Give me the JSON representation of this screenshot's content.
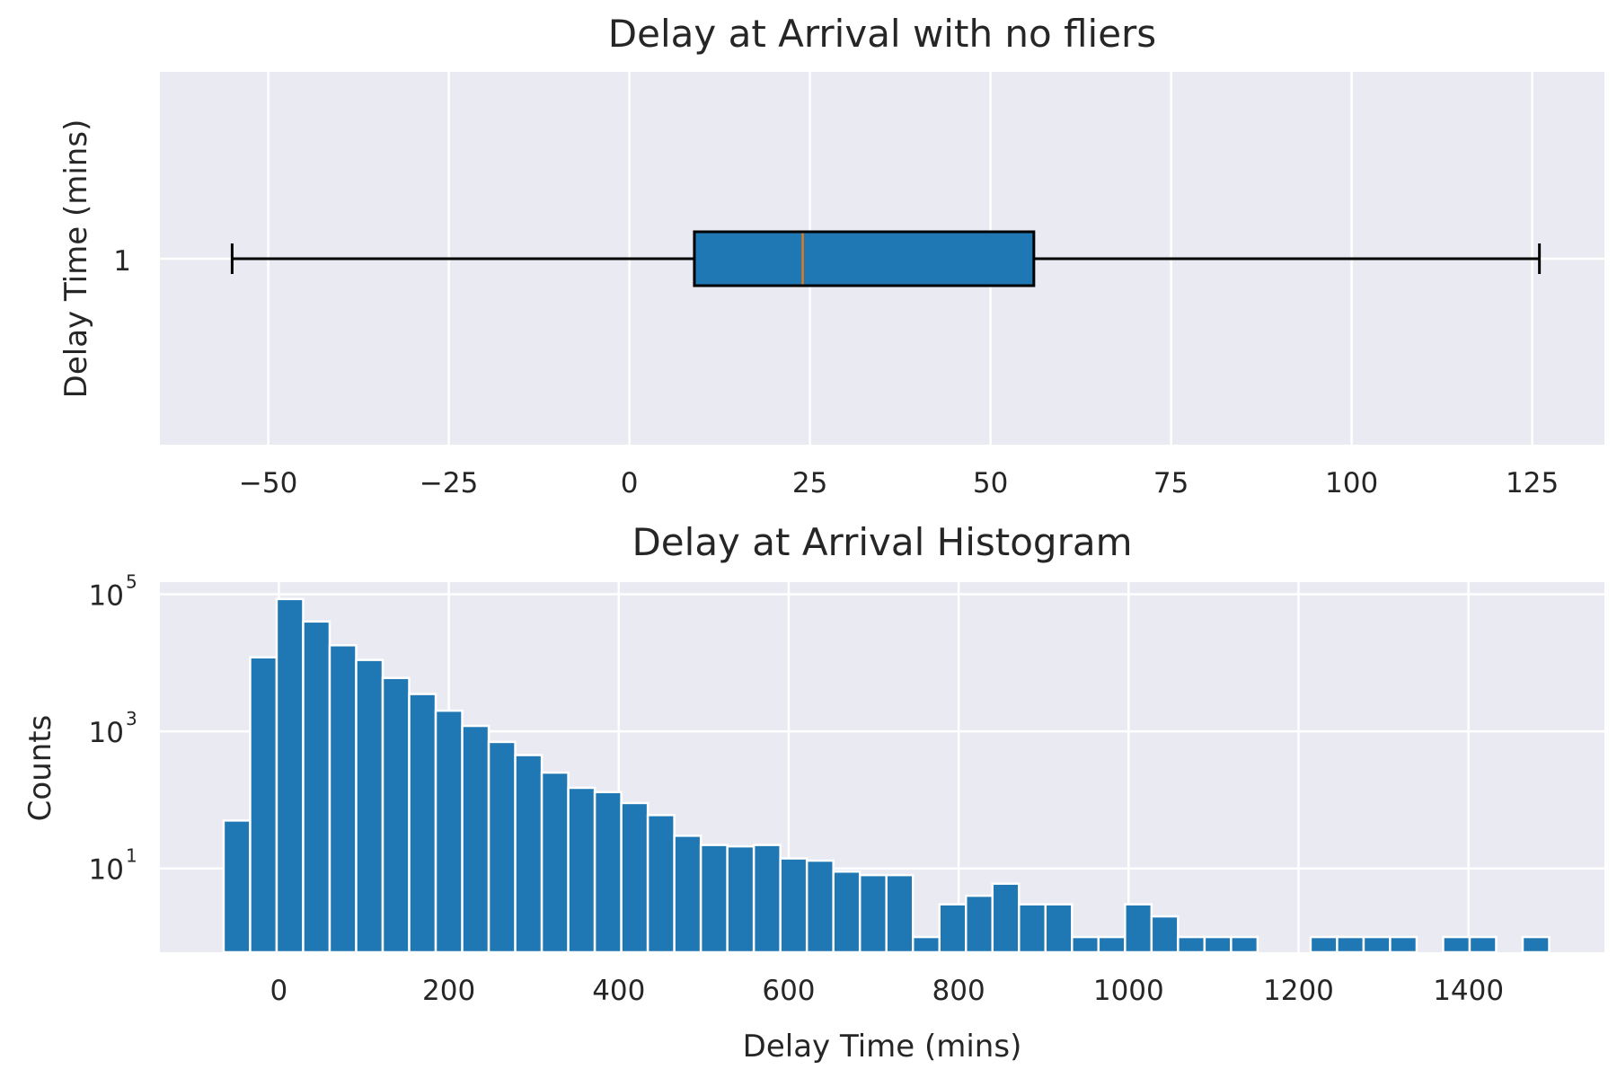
{
  "colors": {
    "axes_bg": "#EAEAF2",
    "grid": "#FFFFFF",
    "bar": "#1F77B4",
    "box_fill": "#1F77B4",
    "median": "#E07B1E",
    "whisker": "#000000"
  },
  "chart_data": [
    {
      "type": "box",
      "title": "Delay at Arrival with no fliers",
      "xlabel": "",
      "ylabel": "Delay Time  (mins)",
      "orientation": "horizontal",
      "category_label": "1",
      "xlim": [
        -65,
        135
      ],
      "xticks": [
        -50,
        -25,
        0,
        25,
        50,
        75,
        100,
        125
      ],
      "xtick_labels": [
        "−50",
        "−25",
        "0",
        "25",
        "50",
        "75",
        "100",
        "125"
      ],
      "stats": {
        "whisker_low": -55,
        "q1": 9,
        "median": 24,
        "q3": 56,
        "whisker_high": 126
      },
      "grid": true
    },
    {
      "type": "bar",
      "subtype": "histogram",
      "title": "Delay at Arrival Histogram",
      "xlabel": "Delay Time (mins)",
      "ylabel": "Counts",
      "yscale": "log",
      "xlim": [
        -140,
        1560
      ],
      "ylim": [
        0.6,
        150000
      ],
      "xticks": [
        0,
        200,
        400,
        600,
        800,
        1000,
        1200,
        1400
      ],
      "xtick_labels": [
        "0",
        "200",
        "400",
        "600",
        "800",
        "1000",
        "1200",
        "1400"
      ],
      "yticks": [
        10,
        1000,
        100000
      ],
      "ytick_base": "10",
      "ytick_exponents": [
        "1",
        "3",
        "5"
      ],
      "bin_start": -65,
      "bin_width": 31.2,
      "counts": [
        50,
        12000,
        85000,
        40000,
        18000,
        11000,
        6000,
        3500,
        2000,
        1200,
        700,
        450,
        250,
        150,
        130,
        90,
        60,
        30,
        22,
        21,
        22,
        14,
        13,
        9,
        8,
        8,
        1,
        3,
        4,
        6,
        3,
        3,
        1,
        1,
        3,
        2,
        1,
        1,
        1,
        0,
        0,
        1,
        1,
        1,
        1,
        0,
        1,
        1,
        0,
        1
      ],
      "grid": true
    }
  ]
}
